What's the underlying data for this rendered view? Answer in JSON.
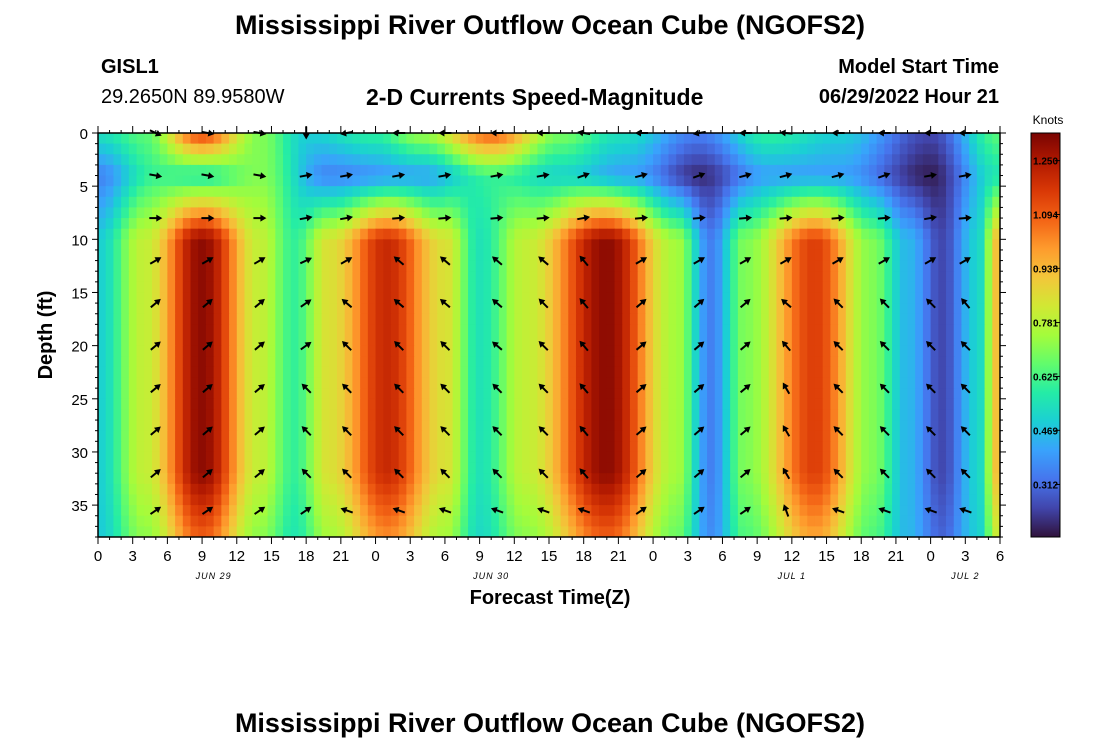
{
  "header": {
    "title": "Mississippi River Outflow Ocean Cube (NGOFS2)",
    "station_id": "GISL1",
    "coordinates": "29.2650N  89.9580W",
    "subtitle": "2-D Currents Speed-Magnitude",
    "model_start_label": "Model Start Time",
    "model_start_value": "06/29/2022 Hour 21"
  },
  "footer": {
    "title": "Mississippi River Outflow Ocean Cube (NGOFS2)"
  },
  "chart_data": {
    "type": "heatmap",
    "title": "2-D Currents Speed-Magnitude",
    "xlabel": "Forecast Time(Z)",
    "ylabel": "Depth (ft)",
    "x_range_hours": [
      0,
      78
    ],
    "x_ticks": [
      {
        "hour": 0,
        "label": "0"
      },
      {
        "hour": 3,
        "label": "3"
      },
      {
        "hour": 6,
        "label": "6"
      },
      {
        "hour": 9,
        "label": "9"
      },
      {
        "hour": 12,
        "label": "12"
      },
      {
        "hour": 15,
        "label": "15"
      },
      {
        "hour": 18,
        "label": "18"
      },
      {
        "hour": 21,
        "label": "21"
      },
      {
        "hour": 24,
        "label": "0"
      },
      {
        "hour": 27,
        "label": "3"
      },
      {
        "hour": 30,
        "label": "6"
      },
      {
        "hour": 33,
        "label": "9"
      },
      {
        "hour": 36,
        "label": "12"
      },
      {
        "hour": 39,
        "label": "15"
      },
      {
        "hour": 42,
        "label": "18"
      },
      {
        "hour": 45,
        "label": "21"
      },
      {
        "hour": 48,
        "label": "0"
      },
      {
        "hour": 51,
        "label": "3"
      },
      {
        "hour": 54,
        "label": "6"
      },
      {
        "hour": 57,
        "label": "9"
      },
      {
        "hour": 60,
        "label": "12"
      },
      {
        "hour": 63,
        "label": "15"
      },
      {
        "hour": 66,
        "label": "18"
      },
      {
        "hour": 69,
        "label": "21"
      },
      {
        "hour": 72,
        "label": "0"
      },
      {
        "hour": 75,
        "label": "3"
      },
      {
        "hour": 78,
        "label": "6"
      }
    ],
    "date_labels": [
      {
        "hour": 10,
        "label": "JUN 29"
      },
      {
        "hour": 34,
        "label": "JUN 30"
      },
      {
        "hour": 60,
        "label": "JUL 1"
      },
      {
        "hour": 75,
        "label": "JUL 2"
      }
    ],
    "y_range_ft": [
      0,
      38
    ],
    "y_ticks": [
      0,
      5,
      10,
      15,
      20,
      25,
      30,
      35
    ],
    "y_tick_labels": [
      "0",
      "5",
      "10",
      "15",
      "20",
      "25",
      "30",
      "35"
    ],
    "colorbar": {
      "unit": "Knots",
      "min": 0.16,
      "max": 1.33,
      "tick_values": [
        1.25,
        1.094,
        0.938,
        0.781,
        0.625,
        0.469,
        0.312
      ],
      "tick_labels": [
        "1.250",
        "1.094",
        "0.938",
        "0.781",
        "0.625",
        "0.469",
        "0.312"
      ],
      "colors": [
        "#30123b",
        "#4145ab",
        "#4675ed",
        "#39a2fc",
        "#1bcfd4",
        "#24eca6",
        "#61fc6c",
        "#a4fc3b",
        "#d1e834",
        "#f3c63a",
        "#fe9b2d",
        "#f36315",
        "#d93806",
        "#b11901",
        "#7a0402"
      ]
    },
    "surface_layer_speed_knots": [
      {
        "hour": 0,
        "value": 0.55
      },
      {
        "hour": 4,
        "value": 0.65
      },
      {
        "hour": 9,
        "value": 1.15
      },
      {
        "hour": 14,
        "value": 0.7
      },
      {
        "hour": 18,
        "value": 0.5
      },
      {
        "hour": 24,
        "value": 0.6
      },
      {
        "hour": 28,
        "value": 0.75
      },
      {
        "hour": 34,
        "value": 1.1
      },
      {
        "hour": 40,
        "value": 0.7
      },
      {
        "hour": 45,
        "value": 0.55
      },
      {
        "hour": 52,
        "value": 0.35
      },
      {
        "hour": 58,
        "value": 0.6
      },
      {
        "hour": 64,
        "value": 0.5
      },
      {
        "hour": 72,
        "value": 0.25
      },
      {
        "hour": 78,
        "value": 0.65
      }
    ],
    "mid_layer_speed_knots": [
      {
        "hour": 0,
        "value": 0.35
      },
      {
        "hour": 5,
        "value": 0.6
      },
      {
        "hour": 9,
        "value": 0.55
      },
      {
        "hour": 14,
        "value": 0.7
      },
      {
        "hour": 20,
        "value": 0.35
      },
      {
        "hour": 28,
        "value": 0.4
      },
      {
        "hour": 34,
        "value": 0.6
      },
      {
        "hour": 40,
        "value": 0.5
      },
      {
        "hour": 46,
        "value": 0.4
      },
      {
        "hour": 52,
        "value": 0.2
      },
      {
        "hour": 58,
        "value": 0.4
      },
      {
        "hour": 64,
        "value": 0.4
      },
      {
        "hour": 72,
        "value": 0.18
      },
      {
        "hour": 78,
        "value": 0.55
      }
    ],
    "deep_layer_speed_knots": [
      {
        "hour": 0,
        "value": 0.5
      },
      {
        "hour": 4,
        "value": 0.8
      },
      {
        "hour": 9,
        "value": 1.3
      },
      {
        "hour": 14,
        "value": 0.8
      },
      {
        "hour": 17,
        "value": 0.6
      },
      {
        "hour": 20,
        "value": 0.85
      },
      {
        "hour": 25,
        "value": 1.2
      },
      {
        "hour": 30,
        "value": 0.85
      },
      {
        "hour": 33,
        "value": 0.55
      },
      {
        "hour": 37,
        "value": 0.8
      },
      {
        "hour": 44,
        "value": 1.3
      },
      {
        "hour": 50,
        "value": 0.75
      },
      {
        "hour": 53,
        "value": 0.35
      },
      {
        "hour": 56,
        "value": 0.7
      },
      {
        "hour": 62,
        "value": 1.15
      },
      {
        "hour": 67,
        "value": 0.7
      },
      {
        "hour": 70,
        "value": 0.45
      },
      {
        "hour": 73,
        "value": 0.25
      },
      {
        "hour": 76,
        "value": 0.5
      },
      {
        "hour": 78,
        "value": 0.95
      }
    ],
    "arrows": {
      "hours": [
        5,
        9.5,
        14,
        18,
        21.5,
        26,
        30,
        34.5,
        38.5,
        42,
        47,
        52,
        56,
        59.5,
        64,
        68,
        72,
        75
      ],
      "depths_ft": [
        0,
        4,
        8,
        12,
        16,
        20,
        24,
        28,
        32,
        35.5
      ],
      "angles_deg": [
        [
          25,
          10,
          10,
          90,
          170,
          180,
          180,
          180,
          180,
          190,
          180,
          170,
          180,
          185,
          180,
          180,
          180,
          180
        ],
        [
          10,
          10,
          10,
          350,
          350,
          350,
          350,
          350,
          350,
          340,
          345,
          340,
          345,
          345,
          345,
          340,
          350,
          350
        ],
        [
          0,
          0,
          0,
          350,
          350,
          355,
          355,
          355,
          355,
          350,
          355,
          355,
          355,
          355,
          355,
          355,
          350,
          355
        ],
        [
          -30,
          -30,
          -30,
          -25,
          -30,
          220,
          220,
          220,
          220,
          230,
          -30,
          -30,
          -30,
          -30,
          -30,
          -30,
          -30,
          -30
        ],
        [
          -40,
          -40,
          -40,
          -35,
          220,
          220,
          220,
          220,
          225,
          230,
          -40,
          -40,
          -40,
          220,
          225,
          225,
          225,
          230
        ],
        [
          -40,
          -40,
          -40,
          -35,
          225,
          225,
          225,
          220,
          225,
          230,
          -40,
          -40,
          -40,
          230,
          225,
          225,
          225,
          225
        ],
        [
          -40,
          -40,
          -40,
          225,
          225,
          225,
          225,
          225,
          225,
          230,
          -40,
          -40,
          -40,
          240,
          225,
          225,
          225,
          225
        ],
        [
          -40,
          -40,
          -40,
          225,
          225,
          225,
          225,
          225,
          225,
          230,
          -40,
          -40,
          -40,
          240,
          225,
          225,
          225,
          225
        ],
        [
          -40,
          -40,
          -40,
          225,
          225,
          225,
          225,
          225,
          225,
          230,
          -40,
          -40,
          -40,
          240,
          225,
          225,
          225,
          225
        ],
        [
          -35,
          -35,
          -35,
          -35,
          200,
          200,
          200,
          200,
          200,
          200,
          -35,
          -35,
          -35,
          250,
          200,
          200,
          200,
          200
        ]
      ]
    }
  }
}
